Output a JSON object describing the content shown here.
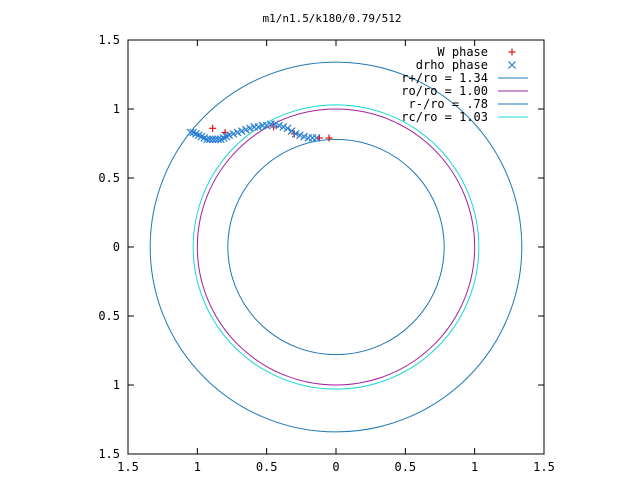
{
  "chart_data": {
    "type": "scatter",
    "title": "m1/n1.5/k180/0.79/512",
    "xlim": [
      -1.5,
      1.5
    ],
    "ylim": [
      -1.5,
      1.5
    ],
    "x_tick_labels": [
      "1.5",
      "1",
      "0.5",
      "0",
      "0.5",
      "1",
      "1.5"
    ],
    "y_tick_labels": [
      "1.5",
      "1",
      "0.5",
      "0",
      "0.5",
      "1",
      "1.5"
    ],
    "ticks": [
      -1.5,
      -1,
      -0.5,
      0,
      0.5,
      1,
      1.5
    ],
    "legend_position": "top-right",
    "series": [
      {
        "name": "W phase",
        "kind": "points",
        "marker": "plus",
        "color": "#e01010",
        "points": [
          [
            -0.89,
            0.86
          ],
          [
            -0.8,
            0.83
          ],
          [
            -0.45,
            0.87
          ],
          [
            -0.3,
            0.82
          ],
          [
            -0.12,
            0.79
          ],
          [
            -0.05,
            0.79
          ]
        ]
      },
      {
        "name": "drho phase",
        "kind": "points",
        "marker": "x",
        "color": "#2a7fd4",
        "points": [
          [
            -1.05,
            0.83
          ],
          [
            -1.03,
            0.83
          ],
          [
            -1.01,
            0.82
          ],
          [
            -0.99,
            0.81
          ],
          [
            -0.97,
            0.8
          ],
          [
            -0.95,
            0.79
          ],
          [
            -0.93,
            0.78
          ],
          [
            -0.91,
            0.78
          ],
          [
            -0.89,
            0.78
          ],
          [
            -0.87,
            0.78
          ],
          [
            -0.85,
            0.78
          ],
          [
            -0.83,
            0.78
          ],
          [
            -0.81,
            0.79
          ],
          [
            -0.79,
            0.8
          ],
          [
            -0.77,
            0.81
          ],
          [
            -0.74,
            0.82
          ],
          [
            -0.71,
            0.83
          ],
          [
            -0.68,
            0.84
          ],
          [
            -0.65,
            0.85
          ],
          [
            -0.62,
            0.86
          ],
          [
            -0.59,
            0.87
          ],
          [
            -0.56,
            0.87
          ],
          [
            -0.53,
            0.88
          ],
          [
            -0.5,
            0.88
          ],
          [
            -0.47,
            0.89
          ],
          [
            -0.44,
            0.89
          ],
          [
            -0.41,
            0.88
          ],
          [
            -0.38,
            0.87
          ],
          [
            -0.35,
            0.86
          ],
          [
            -0.32,
            0.84
          ],
          [
            -0.29,
            0.82
          ],
          [
            -0.26,
            0.81
          ],
          [
            -0.23,
            0.8
          ],
          [
            -0.2,
            0.79
          ],
          [
            -0.17,
            0.79
          ],
          [
            -0.14,
            0.79
          ]
        ]
      },
      {
        "name": "r+/ro = 1.34",
        "kind": "circle",
        "radius": 1.34,
        "color": "#1f77b4"
      },
      {
        "name": "ro/ro = 1.00",
        "kind": "circle",
        "radius": 1.0,
        "color": "#a020a0"
      },
      {
        "name": "r-/ro = .78",
        "kind": "circle",
        "radius": 0.78,
        "color": "#1f77b4"
      },
      {
        "name": "rc/ro = 1.03",
        "kind": "circle",
        "radius": 1.03,
        "color": "#18d8d8"
      }
    ]
  }
}
